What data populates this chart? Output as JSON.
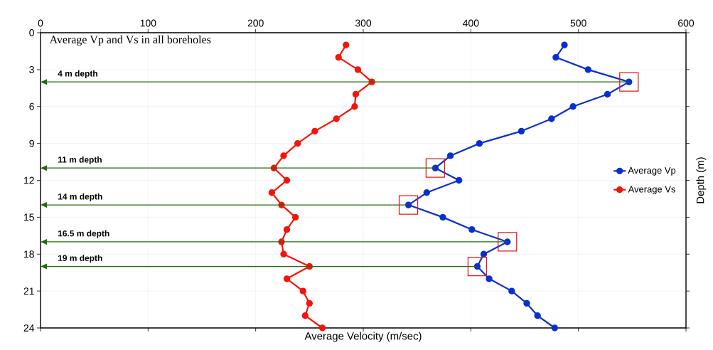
{
  "chart_data": {
    "type": "line",
    "orientation": "horizontal",
    "title": "Average Vp and Vs in all boreholes",
    "xlabel": "Average Velocity (m/sec)",
    "ylabel": "Depth (m)",
    "x": [
      1,
      2,
      3,
      4,
      5,
      6,
      7,
      8,
      9,
      10,
      11,
      12,
      13,
      14,
      15,
      16,
      17,
      18,
      19,
      20,
      21,
      22,
      23,
      24
    ],
    "series": [
      {
        "name": "Average Vp",
        "color": "#0a2fd0",
        "values": [
          487,
          479,
          509,
          547,
          527,
          495,
          475,
          447,
          408,
          381,
          367,
          389,
          359,
          342,
          374,
          401,
          434,
          412,
          406,
          417,
          438,
          452,
          462,
          478
        ]
      },
      {
        "name": "Average Vs",
        "color": "#f5140a",
        "values": [
          284,
          277,
          295,
          308,
          293,
          292,
          275,
          255,
          239,
          226,
          217,
          229,
          215,
          224,
          237,
          229,
          224,
          226,
          250,
          229,
          244,
          250,
          246,
          262
        ]
      }
    ],
    "ref_lines": [
      {
        "axis": "y",
        "value": 4,
        "label": "4 m depth",
        "color": "#1e6e0a"
      },
      {
        "axis": "y",
        "value": 11,
        "label": "11 m depth",
        "color": "#1e6e0a"
      },
      {
        "axis": "y",
        "value": 14,
        "label": "14 m depth",
        "color": "#1e6e0a"
      },
      {
        "axis": "y",
        "value": 17,
        "label": "16.5 m depth",
        "color": "#1e6e0a"
      },
      {
        "axis": "y",
        "value": 19,
        "label": "19 m depth",
        "color": "#1e6e0a"
      }
    ],
    "xlim": [
      0,
      600
    ],
    "xticks": [
      0,
      100,
      200,
      300,
      400,
      500,
      600
    ],
    "ylim": [
      24,
      0
    ],
    "yticks": [
      0,
      3,
      6,
      9,
      12,
      15,
      18,
      21,
      24
    ],
    "grid": true,
    "legend": "right",
    "marker": "circle",
    "line_style": "solid"
  }
}
